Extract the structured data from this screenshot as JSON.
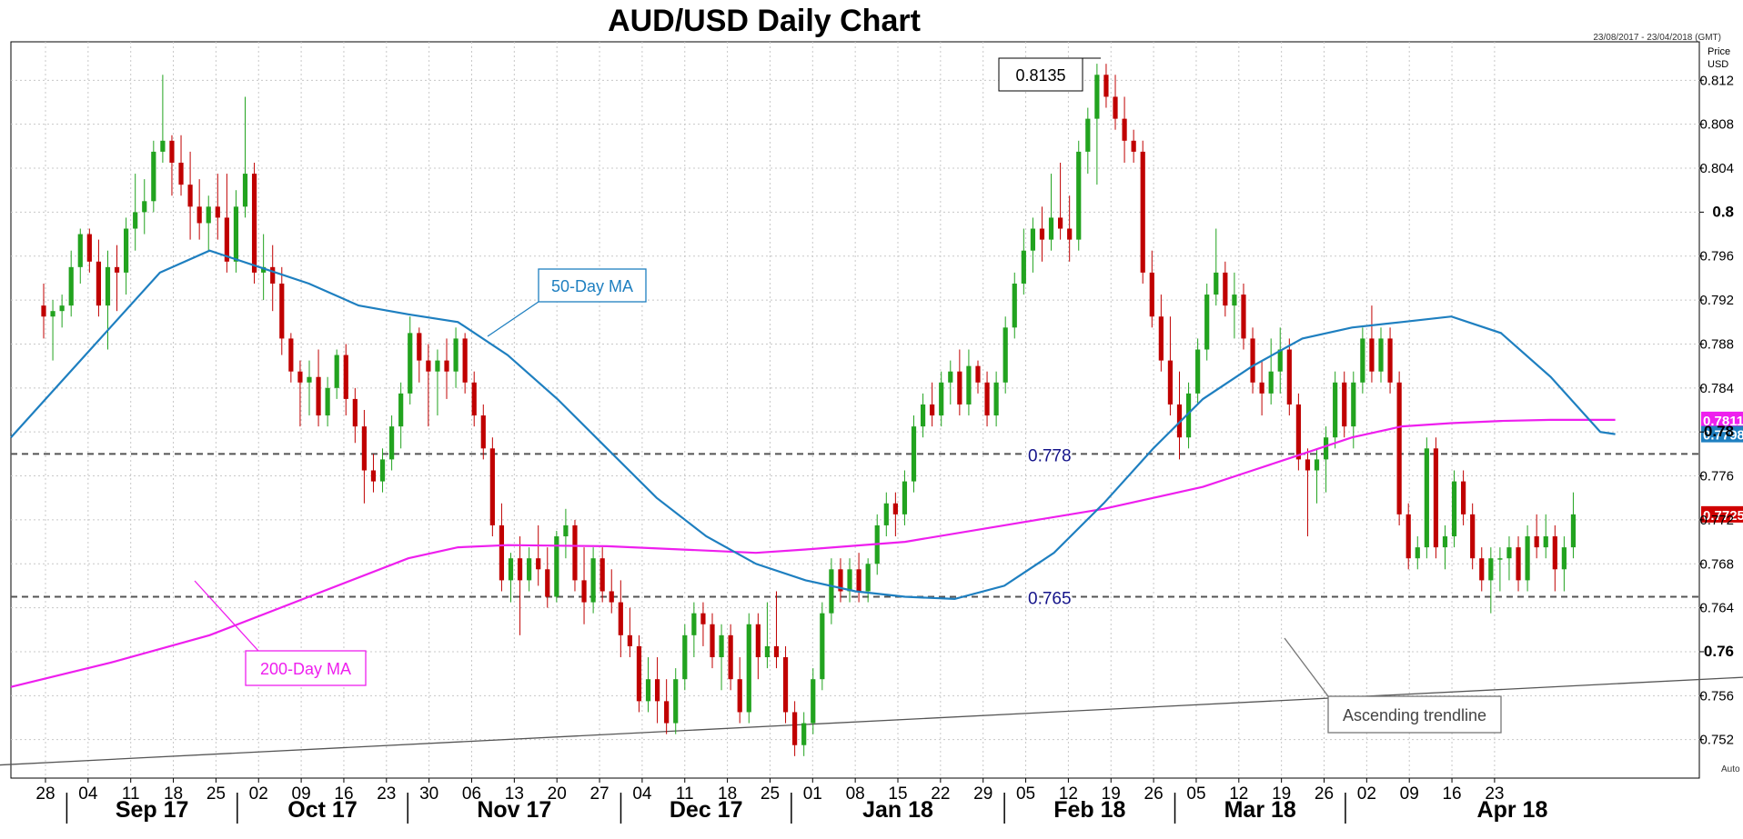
{
  "chart_data": {
    "type": "candlestick",
    "title": "AUD/USD Daily Chart",
    "date_range": "23/08/2017 - 23/04/2018 (GMT)",
    "ylabel": "Price USD",
    "y_axis_title": [
      "Price",
      "USD"
    ],
    "ylim": [
      0.7485,
      0.8155
    ],
    "y_ticks": [
      0.752,
      0.756,
      0.76,
      0.764,
      0.768,
      0.772,
      0.776,
      0.78,
      0.784,
      0.788,
      0.792,
      0.796,
      0.8,
      0.804,
      0.808,
      0.812
    ],
    "y_tick_labels": [
      "0.752",
      "0.756",
      "0.76",
      "0.764",
      "0.768",
      "0.772",
      "0.776",
      "0.78",
      "0.784",
      "0.788",
      "0.792",
      "0.796",
      "0.8",
      "0.804",
      "0.808",
      "0.812"
    ],
    "y_bold_ticks": [
      "0.76",
      "0.78",
      "0.8"
    ],
    "x_day_labels": [
      "28",
      "04",
      "11",
      "18",
      "25",
      "02",
      "09",
      "16",
      "23",
      "30",
      "06",
      "13",
      "20",
      "27",
      "04",
      "11",
      "18",
      "25",
      "01",
      "08",
      "15",
      "22",
      "29",
      "05",
      "12",
      "19",
      "26",
      "05",
      "12",
      "19",
      "26",
      "02",
      "09",
      "16",
      "23"
    ],
    "x_month_labels": [
      "Sep 17",
      "Oct 17",
      "Nov 17",
      "Dec 17",
      "Jan 18",
      "Feb 18",
      "Mar 18",
      "Apr 18"
    ],
    "month_start_week_index": [
      1,
      5,
      9,
      14,
      18,
      23,
      27,
      31
    ],
    "week_spacing_days": 5,
    "visible_days": 172,
    "colors": {
      "up": "#22a31f",
      "down": "#c00000",
      "ma50": "#1e7fc0",
      "ma200": "#ee1fee",
      "trendline": "#555555",
      "price_badge": "#d00000"
    },
    "candles": [
      [
        0.7915,
        0.7935,
        0.7885,
        0.7905
      ],
      [
        0.7905,
        0.792,
        0.7865,
        0.791
      ],
      [
        0.791,
        0.7925,
        0.7895,
        0.7915
      ],
      [
        0.7915,
        0.7965,
        0.7905,
        0.795
      ],
      [
        0.795,
        0.7985,
        0.7935,
        0.798
      ],
      [
        0.798,
        0.7985,
        0.7945,
        0.7955
      ],
      [
        0.7955,
        0.7975,
        0.7905,
        0.7915
      ],
      [
        0.7915,
        0.7965,
        0.7875,
        0.795
      ],
      [
        0.795,
        0.797,
        0.791,
        0.7945
      ],
      [
        0.7945,
        0.7995,
        0.7925,
        0.7985
      ],
      [
        0.7985,
        0.8035,
        0.7965,
        0.8
      ],
      [
        0.8,
        0.803,
        0.798,
        0.801
      ],
      [
        0.801,
        0.8065,
        0.8,
        0.8055
      ],
      [
        0.8055,
        0.8125,
        0.8045,
        0.8065
      ],
      [
        0.8065,
        0.807,
        0.8015,
        0.8045
      ],
      [
        0.8045,
        0.807,
        0.8015,
        0.8025
      ],
      [
        0.8025,
        0.8055,
        0.7975,
        0.8005
      ],
      [
        0.8005,
        0.803,
        0.7975,
        0.799
      ],
      [
        0.799,
        0.8015,
        0.7965,
        0.8005
      ],
      [
        0.8005,
        0.8035,
        0.7975,
        0.7995
      ],
      [
        0.7995,
        0.8035,
        0.7945,
        0.7955
      ],
      [
        0.7955,
        0.802,
        0.7945,
        0.8005
      ],
      [
        0.8005,
        0.8105,
        0.7995,
        0.8035
      ],
      [
        0.8035,
        0.8045,
        0.7935,
        0.7945
      ],
      [
        0.7945,
        0.798,
        0.792,
        0.795
      ],
      [
        0.795,
        0.797,
        0.791,
        0.7935
      ],
      [
        0.7935,
        0.795,
        0.787,
        0.7885
      ],
      [
        0.7885,
        0.789,
        0.7845,
        0.7855
      ],
      [
        0.7855,
        0.7865,
        0.7805,
        0.7845
      ],
      [
        0.7845,
        0.7865,
        0.7815,
        0.785
      ],
      [
        0.785,
        0.7875,
        0.7805,
        0.7815
      ],
      [
        0.7815,
        0.785,
        0.7805,
        0.784
      ],
      [
        0.784,
        0.7875,
        0.783,
        0.787
      ],
      [
        0.787,
        0.788,
        0.7815,
        0.783
      ],
      [
        0.783,
        0.784,
        0.779,
        0.7805
      ],
      [
        0.7805,
        0.782,
        0.7735,
        0.7765
      ],
      [
        0.7765,
        0.778,
        0.7745,
        0.7755
      ],
      [
        0.7755,
        0.7785,
        0.7745,
        0.7775
      ],
      [
        0.7775,
        0.7815,
        0.7765,
        0.7805
      ],
      [
        0.7805,
        0.7845,
        0.7785,
        0.7835
      ],
      [
        0.7835,
        0.7905,
        0.7825,
        0.789
      ],
      [
        0.789,
        0.7895,
        0.7845,
        0.7865
      ],
      [
        0.7865,
        0.788,
        0.7805,
        0.7855
      ],
      [
        0.7855,
        0.7875,
        0.7815,
        0.7865
      ],
      [
        0.7865,
        0.7885,
        0.783,
        0.7855
      ],
      [
        0.7855,
        0.7895,
        0.784,
        0.7885
      ],
      [
        0.7885,
        0.789,
        0.7835,
        0.7845
      ],
      [
        0.7845,
        0.7855,
        0.7805,
        0.7815
      ],
      [
        0.7815,
        0.7825,
        0.7775,
        0.7785
      ],
      [
        0.7785,
        0.7795,
        0.7705,
        0.7715
      ],
      [
        0.7715,
        0.7735,
        0.7655,
        0.7665
      ],
      [
        0.7665,
        0.769,
        0.7645,
        0.7685
      ],
      [
        0.7685,
        0.7705,
        0.7615,
        0.7665
      ],
      [
        0.7665,
        0.7695,
        0.7655,
        0.7685
      ],
      [
        0.7685,
        0.7715,
        0.766,
        0.7675
      ],
      [
        0.7675,
        0.7695,
        0.764,
        0.765
      ],
      [
        0.765,
        0.771,
        0.7645,
        0.7705
      ],
      [
        0.7705,
        0.773,
        0.7685,
        0.7715
      ],
      [
        0.7715,
        0.772,
        0.7655,
        0.7665
      ],
      [
        0.7665,
        0.7695,
        0.7625,
        0.7645
      ],
      [
        0.7645,
        0.7695,
        0.7635,
        0.7685
      ],
      [
        0.7685,
        0.7695,
        0.7645,
        0.7655
      ],
      [
        0.7655,
        0.7675,
        0.7635,
        0.7645
      ],
      [
        0.7645,
        0.7665,
        0.7595,
        0.7615
      ],
      [
        0.7615,
        0.764,
        0.7595,
        0.7605
      ],
      [
        0.7605,
        0.7615,
        0.7545,
        0.7555
      ],
      [
        0.7555,
        0.7595,
        0.7545,
        0.7575
      ],
      [
        0.7575,
        0.7595,
        0.7535,
        0.7555
      ],
      [
        0.7555,
        0.7575,
        0.7525,
        0.7535
      ],
      [
        0.7535,
        0.7585,
        0.7525,
        0.7575
      ],
      [
        0.7575,
        0.7625,
        0.7565,
        0.7615
      ],
      [
        0.7615,
        0.7645,
        0.7595,
        0.7635
      ],
      [
        0.7635,
        0.7645,
        0.7605,
        0.7625
      ],
      [
        0.7625,
        0.7635,
        0.7585,
        0.7595
      ],
      [
        0.7595,
        0.7625,
        0.7565,
        0.7615
      ],
      [
        0.7615,
        0.7625,
        0.7565,
        0.7575
      ],
      [
        0.7575,
        0.7595,
        0.7535,
        0.7545
      ],
      [
        0.7545,
        0.7635,
        0.7535,
        0.7625
      ],
      [
        0.7625,
        0.7635,
        0.7575,
        0.7595
      ],
      [
        0.7595,
        0.7645,
        0.7585,
        0.7605
      ],
      [
        0.7605,
        0.7655,
        0.7585,
        0.7595
      ],
      [
        0.7595,
        0.7605,
        0.7535,
        0.7545
      ],
      [
        0.7545,
        0.7555,
        0.7505,
        0.7515
      ],
      [
        0.7515,
        0.7545,
        0.7505,
        0.7535
      ],
      [
        0.7535,
        0.7585,
        0.7525,
        0.7575
      ],
      [
        0.7575,
        0.7645,
        0.7565,
        0.7635
      ],
      [
        0.7635,
        0.7685,
        0.7625,
        0.7675
      ],
      [
        0.7675,
        0.7685,
        0.7645,
        0.7655
      ],
      [
        0.7655,
        0.7685,
        0.7645,
        0.7675
      ],
      [
        0.7675,
        0.769,
        0.7645,
        0.7655
      ],
      [
        0.7655,
        0.7685,
        0.7645,
        0.768
      ],
      [
        0.768,
        0.7725,
        0.767,
        0.7715
      ],
      [
        0.7715,
        0.7745,
        0.7705,
        0.7735
      ],
      [
        0.7735,
        0.7745,
        0.7705,
        0.7725
      ],
      [
        0.7725,
        0.7765,
        0.7715,
        0.7755
      ],
      [
        0.7755,
        0.7815,
        0.7745,
        0.7805
      ],
      [
        0.7805,
        0.7835,
        0.7795,
        0.7825
      ],
      [
        0.7825,
        0.7845,
        0.7805,
        0.7815
      ],
      [
        0.7815,
        0.7855,
        0.7805,
        0.7845
      ],
      [
        0.7845,
        0.7865,
        0.7825,
        0.7855
      ],
      [
        0.7855,
        0.7875,
        0.7815,
        0.7825
      ],
      [
        0.7825,
        0.7875,
        0.7815,
        0.786
      ],
      [
        0.786,
        0.7865,
        0.7835,
        0.7845
      ],
      [
        0.7845,
        0.7855,
        0.7805,
        0.7815
      ],
      [
        0.7815,
        0.7855,
        0.7805,
        0.7845
      ],
      [
        0.7845,
        0.7905,
        0.7835,
        0.7895
      ],
      [
        0.7895,
        0.7945,
        0.7885,
        0.7935
      ],
      [
        0.7935,
        0.7985,
        0.7925,
        0.7965
      ],
      [
        0.7965,
        0.7995,
        0.7945,
        0.7985
      ],
      [
        0.7985,
        0.8005,
        0.7955,
        0.7975
      ],
      [
        0.7975,
        0.8035,
        0.7965,
        0.7995
      ],
      [
        0.7995,
        0.8045,
        0.7975,
        0.7985
      ],
      [
        0.7985,
        0.8015,
        0.7955,
        0.7975
      ],
      [
        0.7975,
        0.8065,
        0.7965,
        0.8055
      ],
      [
        0.8055,
        0.8095,
        0.8035,
        0.8085
      ],
      [
        0.8085,
        0.8135,
        0.8025,
        0.8125
      ],
      [
        0.8125,
        0.8135,
        0.8095,
        0.8105
      ],
      [
        0.8105,
        0.8125,
        0.8075,
        0.8085
      ],
      [
        0.8085,
        0.8105,
        0.8045,
        0.8065
      ],
      [
        0.8065,
        0.8075,
        0.8045,
        0.8055
      ],
      [
        0.8055,
        0.8065,
        0.7935,
        0.7945
      ],
      [
        0.7945,
        0.7965,
        0.7895,
        0.7905
      ],
      [
        0.7905,
        0.7925,
        0.7855,
        0.7865
      ],
      [
        0.7865,
        0.7905,
        0.7815,
        0.7825
      ],
      [
        0.7825,
        0.7855,
        0.7775,
        0.7795
      ],
      [
        0.7795,
        0.7845,
        0.7785,
        0.7835
      ],
      [
        0.7835,
        0.7885,
        0.7825,
        0.7875
      ],
      [
        0.7875,
        0.7935,
        0.7865,
        0.7925
      ],
      [
        0.7925,
        0.7985,
        0.7915,
        0.7945
      ],
      [
        0.7945,
        0.7955,
        0.7905,
        0.7915
      ],
      [
        0.7915,
        0.7945,
        0.7885,
        0.7925
      ],
      [
        0.7925,
        0.7935,
        0.7875,
        0.7885
      ],
      [
        0.7885,
        0.7895,
        0.7835,
        0.7845
      ],
      [
        0.7845,
        0.7865,
        0.7815,
        0.7835
      ],
      [
        0.7835,
        0.7885,
        0.7825,
        0.7855
      ],
      [
        0.7855,
        0.7895,
        0.7835,
        0.7875
      ],
      [
        0.7875,
        0.7885,
        0.7815,
        0.7825
      ],
      [
        0.7825,
        0.7835,
        0.7765,
        0.7775
      ],
      [
        0.7775,
        0.7785,
        0.7705,
        0.7765
      ],
      [
        0.7765,
        0.7785,
        0.7735,
        0.7775
      ],
      [
        0.7775,
        0.7805,
        0.7745,
        0.7795
      ],
      [
        0.7795,
        0.7855,
        0.7785,
        0.7845
      ],
      [
        0.7845,
        0.7855,
        0.7795,
        0.7805
      ],
      [
        0.7805,
        0.7855,
        0.7785,
        0.7845
      ],
      [
        0.7845,
        0.7895,
        0.7835,
        0.7885
      ],
      [
        0.7885,
        0.7915,
        0.7845,
        0.7855
      ],
      [
        0.7855,
        0.7895,
        0.7845,
        0.7885
      ],
      [
        0.7885,
        0.7895,
        0.7835,
        0.7845
      ],
      [
        0.7845,
        0.7855,
        0.7715,
        0.7725
      ],
      [
        0.7725,
        0.7735,
        0.7675,
        0.7685
      ],
      [
        0.7685,
        0.7705,
        0.7675,
        0.7695
      ],
      [
        0.7695,
        0.7795,
        0.7685,
        0.7785
      ],
      [
        0.7785,
        0.7795,
        0.7685,
        0.7695
      ],
      [
        0.7695,
        0.7715,
        0.7675,
        0.7705
      ],
      [
        0.7705,
        0.7765,
        0.7695,
        0.7755
      ],
      [
        0.7755,
        0.7765,
        0.7715,
        0.7725
      ],
      [
        0.7725,
        0.7735,
        0.7675,
        0.7685
      ],
      [
        0.7685,
        0.7695,
        0.7655,
        0.7665
      ],
      [
        0.7665,
        0.7695,
        0.7635,
        0.7685
      ],
      [
        0.7685,
        0.7695,
        0.7655,
        0.7685
      ],
      [
        0.7685,
        0.7705,
        0.7665,
        0.7695
      ],
      [
        0.7695,
        0.7705,
        0.7655,
        0.7665
      ],
      [
        0.7665,
        0.7715,
        0.7655,
        0.7705
      ],
      [
        0.7705,
        0.7725,
        0.7685,
        0.7695
      ],
      [
        0.7695,
        0.7725,
        0.7685,
        0.7705
      ],
      [
        0.7705,
        0.7715,
        0.7655,
        0.7675
      ],
      [
        0.7675,
        0.7705,
        0.7655,
        0.7695
      ],
      [
        0.7695,
        0.7745,
        0.7685,
        0.7725
      ]
    ],
    "ma50": [
      [
        0,
        0.7795
      ],
      [
        10,
        0.7845
      ],
      [
        20,
        0.7895
      ],
      [
        30,
        0.7945
      ],
      [
        40,
        0.7965
      ],
      [
        50,
        0.795
      ],
      [
        60,
        0.7935
      ],
      [
        70,
        0.7915
      ],
      [
        80,
        0.7907
      ],
      [
        90,
        0.79
      ],
      [
        100,
        0.787
      ],
      [
        110,
        0.783
      ],
      [
        120,
        0.7785
      ],
      [
        130,
        0.774
      ],
      [
        140,
        0.7705
      ],
      [
        150,
        0.768
      ],
      [
        160,
        0.7665
      ],
      [
        170,
        0.7655
      ],
      [
        180,
        0.765
      ],
      [
        190,
        0.7648
      ],
      [
        200,
        0.766
      ],
      [
        210,
        0.769
      ],
      [
        220,
        0.7735
      ],
      [
        230,
        0.7785
      ],
      [
        240,
        0.783
      ],
      [
        250,
        0.786
      ],
      [
        260,
        0.7885
      ],
      [
        270,
        0.7895
      ],
      [
        280,
        0.79
      ],
      [
        290,
        0.7905
      ],
      [
        300,
        0.789
      ],
      [
        310,
        0.785
      ],
      [
        320,
        0.78
      ],
      [
        323,
        0.7798
      ]
    ],
    "ma200": [
      [
        0,
        0.7568
      ],
      [
        20,
        0.759
      ],
      [
        40,
        0.7615
      ],
      [
        60,
        0.765
      ],
      [
        80,
        0.7685
      ],
      [
        90,
        0.7695
      ],
      [
        100,
        0.7697
      ],
      [
        120,
        0.7696
      ],
      [
        140,
        0.7692
      ],
      [
        150,
        0.769
      ],
      [
        160,
        0.7693
      ],
      [
        180,
        0.77
      ],
      [
        200,
        0.7715
      ],
      [
        220,
        0.773
      ],
      [
        240,
        0.775
      ],
      [
        250,
        0.7765
      ],
      [
        260,
        0.778
      ],
      [
        270,
        0.7795
      ],
      [
        280,
        0.7805
      ],
      [
        290,
        0.7808
      ],
      [
        300,
        0.781
      ],
      [
        310,
        0.7811
      ],
      [
        323,
        0.7811
      ]
    ],
    "trendline": [
      [
        0.7485,
        -36
      ],
      [
        0.7625,
        323
      ]
    ],
    "hlines": [
      {
        "value": 0.778,
        "label": "0.778"
      },
      {
        "value": 0.765,
        "label": "0.765"
      }
    ],
    "annotations": {
      "high_label": "0.8135",
      "ma50_label": "50-Day MA",
      "ma200_label": "200-Day MA",
      "trend_label": "Ascending trendline"
    },
    "price_badges": [
      {
        "label": "0.7811",
        "value": 0.7811,
        "color": "#ee1fee"
      },
      {
        "label": "0.7798",
        "value": 0.7798,
        "color": "#1e7fc0"
      },
      {
        "label": "0.7725",
        "value": 0.7725,
        "color": "#d00000"
      }
    ],
    "auto_label": "Auto"
  }
}
